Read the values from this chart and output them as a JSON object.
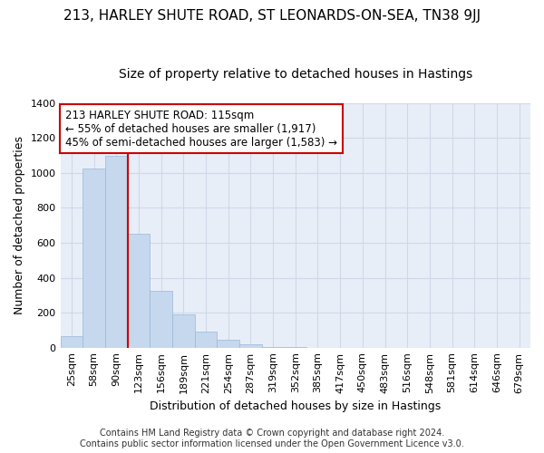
{
  "title": "213, HARLEY SHUTE ROAD, ST LEONARDS-ON-SEA, TN38 9JJ",
  "subtitle": "Size of property relative to detached houses in Hastings",
  "xlabel": "Distribution of detached houses by size in Hastings",
  "ylabel": "Number of detached properties",
  "bar_labels": [
    "25sqm",
    "58sqm",
    "90sqm",
    "123sqm",
    "156sqm",
    "189sqm",
    "221sqm",
    "254sqm",
    "287sqm",
    "319sqm",
    "352sqm",
    "385sqm",
    "417sqm",
    "450sqm",
    "483sqm",
    "516sqm",
    "548sqm",
    "581sqm",
    "614sqm",
    "646sqm",
    "679sqm"
  ],
  "bar_values": [
    65,
    1025,
    1100,
    650,
    325,
    190,
    90,
    47,
    20,
    5,
    1,
    0,
    0,
    0,
    0,
    0,
    0,
    0,
    0,
    0,
    0
  ],
  "bar_color": "#c5d8ed",
  "bar_edgecolor": "#9ab8d8",
  "vline_color": "#cc0000",
  "ylim": [
    0,
    1400
  ],
  "yticks": [
    0,
    200,
    400,
    600,
    800,
    1000,
    1200,
    1400
  ],
  "annotation_text": "213 HARLEY SHUTE ROAD: 115sqm\n← 55% of detached houses are smaller (1,917)\n45% of semi-detached houses are larger (1,583) →",
  "annotation_box_color": "#ffffff",
  "annotation_box_edgecolor": "#cc0000",
  "grid_color": "#d0d8e8",
  "bg_color": "#e8eef8",
  "footer_text": "Contains HM Land Registry data © Crown copyright and database right 2024.\nContains public sector information licensed under the Open Government Licence v3.0.",
  "title_fontsize": 11,
  "subtitle_fontsize": 10,
  "label_fontsize": 9,
  "tick_fontsize": 8,
  "footer_fontsize": 7
}
